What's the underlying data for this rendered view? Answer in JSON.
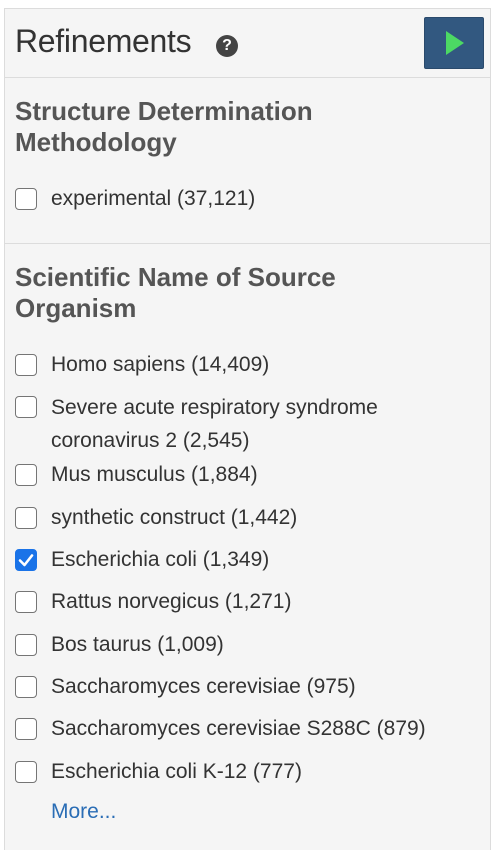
{
  "header": {
    "title": "Refinements",
    "help_icon": "?",
    "go_button_icon": "play-triangle-icon"
  },
  "colors": {
    "go_button_bg": "#325880",
    "go_arrow": "#4cd964",
    "checked": "#1a73e8",
    "link": "#2a6db5"
  },
  "sections": [
    {
      "title": "Structure Determination Methodology",
      "options": [
        {
          "label": "experimental (37,121)",
          "checked": false
        }
      ]
    },
    {
      "title": "Scientific Name of Source Organism",
      "options": [
        {
          "label": "Homo sapiens (14,409)",
          "checked": false
        },
        {
          "label": "Severe acute respiratory syndrome coronavirus 2 (2,545)",
          "checked": false
        },
        {
          "label": "Mus musculus (1,884)",
          "checked": false
        },
        {
          "label": "synthetic construct (1,442)",
          "checked": false
        },
        {
          "label": "Escherichia coli (1,349)",
          "checked": true
        },
        {
          "label": "Rattus norvegicus (1,271)",
          "checked": false
        },
        {
          "label": "Bos taurus (1,009)",
          "checked": false
        },
        {
          "label": "Saccharomyces cerevisiae (975)",
          "checked": false
        },
        {
          "label": "Saccharomyces cerevisiae S288C (879)",
          "checked": false
        },
        {
          "label": "Escherichia coli K-12 (777)",
          "checked": false
        }
      ],
      "more_label": "More..."
    }
  ]
}
